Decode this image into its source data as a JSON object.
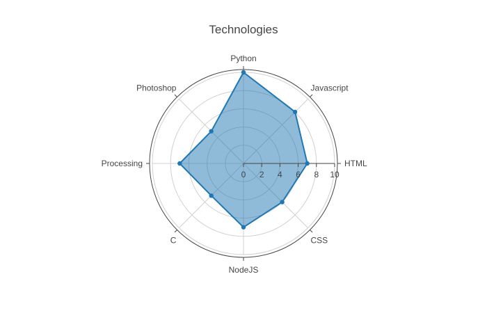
{
  "chart_data": {
    "type": "radar",
    "title": "Technologies",
    "categories": [
      "HTML",
      "Javascript",
      "Python",
      "Photoshop",
      "Processing",
      "C",
      "NodeJS",
      "CSS"
    ],
    "values": [
      7,
      8,
      10,
      5,
      7,
      5,
      7,
      6
    ],
    "radial_range": [
      0,
      10
    ],
    "radial_ticks": [
      "0",
      "2",
      "4",
      "6",
      "8",
      "10"
    ],
    "grid": true,
    "legend": "none",
    "colors": {
      "line": "#1f77b4",
      "fill": "#1f77b4",
      "grid": "#d0d0d0",
      "axis": "#444444",
      "outer_ring": "#444444"
    }
  }
}
